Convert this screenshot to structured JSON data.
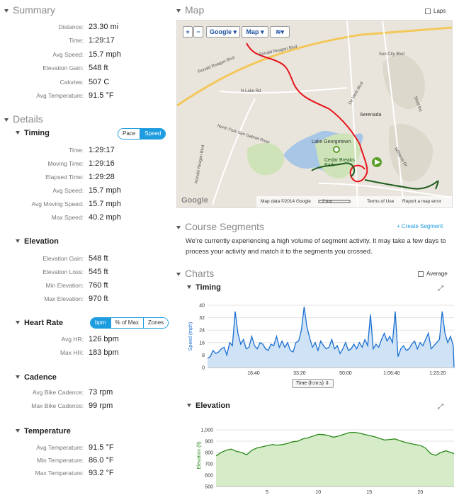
{
  "summary": {
    "title": "Summary",
    "rows": [
      {
        "label": "Distance:",
        "value": "23.30 mi"
      },
      {
        "label": "Time:",
        "value": "1:29:17"
      },
      {
        "label": "Avg Speed:",
        "value": "15.7 mph"
      },
      {
        "label": "Elevation Gain:",
        "value": "548 ft"
      },
      {
        "label": "Calories:",
        "value": "507 C"
      },
      {
        "label": "Avg Temperature:",
        "value": "91.5 °F"
      }
    ]
  },
  "details": {
    "title": "Details",
    "timing": {
      "title": "Timing",
      "toggle": [
        "Pace",
        "Speed"
      ],
      "rows": [
        {
          "label": "Time:",
          "value": "1:29:17"
        },
        {
          "label": "Moving Time:",
          "value": "1:29:16"
        },
        {
          "label": "Elapsed Time:",
          "value": "1:29:28"
        },
        {
          "label": "Avg Speed:",
          "value": "15.7 mph"
        },
        {
          "label": "Avg Moving Speed:",
          "value": "15.7 mph"
        },
        {
          "label": "Max Speed:",
          "value": "40.2 mph"
        }
      ]
    },
    "elevation": {
      "title": "Elevation",
      "rows": [
        {
          "label": "Elevation Gain:",
          "value": "548 ft"
        },
        {
          "label": "Elevation Loss:",
          "value": "545 ft"
        },
        {
          "label": "Min Elevation:",
          "value": "760 ft"
        },
        {
          "label": "Max Elevation:",
          "value": "970 ft"
        }
      ]
    },
    "heart_rate": {
      "title": "Heart Rate",
      "toggle": [
        "bpm",
        "% of Max",
        "Zones"
      ],
      "rows": [
        {
          "label": "Avg HR:",
          "value": "126 bpm"
        },
        {
          "label": "Max HR:",
          "value": "183 bpm"
        }
      ]
    },
    "cadence": {
      "title": "Cadence",
      "rows": [
        {
          "label": "Avg Bike Cadence:",
          "value": "73 rpm"
        },
        {
          "label": "Max Bike Cadence:",
          "value": "99 rpm"
        }
      ]
    },
    "temperature": {
      "title": "Temperature",
      "rows": [
        {
          "label": "Avg Temperature:",
          "value": "91.5 °F"
        },
        {
          "label": "Min Temperature:",
          "value": "86.0 °F"
        },
        {
          "label": "Max Temperature:",
          "value": "93.2 °F"
        }
      ]
    }
  },
  "map": {
    "title": "Map",
    "laps_label": "Laps",
    "buttons": {
      "zoom_in": "+",
      "zoom_out": "−",
      "google": "Google",
      "map": "Map"
    },
    "labels": {
      "road1": "Ronald Reagan Blvd",
      "road2": "Ronald Reagan Blvd",
      "road3": "N Lake Rd",
      "road4": "North Fork San Gabriel River",
      "road5": "De Vanti Blvd",
      "place1": "Serenada",
      "place2": "Lake Georgetown",
      "place3": "Cedar Breaks Park",
      "road6": "Shell Rd",
      "road7": "Sun City Blvd",
      "road8": "Williams Dr",
      "road9": "Ronald Reagan Blvd"
    },
    "footer": {
      "data": "Map data ©2014 Google",
      "scale": "2 km",
      "terms": "Terms of Use",
      "report": "Report a map error",
      "logo": "Google"
    }
  },
  "course_segments": {
    "title": "Course Segments",
    "create_label": "Create Segment",
    "message": "We're currently experiencing a high volume of segment activity. It may take a few days to process your activity and match it to the segments you crossed."
  },
  "charts": {
    "title": "Charts",
    "average_label": "Average",
    "x_selector": "Time (h:m:s)"
  },
  "colors": {
    "accent": "#1d9ce0",
    "route": "#e8141c",
    "speed_line": "#1a6fd0",
    "speed_fill": "#cfe2f6",
    "elev_line": "#2a8a1a",
    "elev_fill": "#d6ecc8"
  },
  "chart_data": [
    {
      "type": "area",
      "title": "Timing",
      "ylabel": "Speed (mph)",
      "xlabel": "Time (h:m:s)",
      "ylim": [
        0,
        40
      ],
      "yticks": [
        0,
        8,
        16,
        24,
        32,
        40
      ],
      "xlim_seconds": [
        0,
        5357
      ],
      "xticks": [
        {
          "t": 1000,
          "label": "16:40"
        },
        {
          "t": 2000,
          "label": "33:20"
        },
        {
          "t": 3000,
          "label": "50:00"
        },
        {
          "t": 4000,
          "label": "1:06:40"
        },
        {
          "t": 5000,
          "label": "1:23:20"
        }
      ],
      "x": [
        0,
        60,
        120,
        180,
        240,
        300,
        360,
        420,
        480,
        540,
        600,
        660,
        720,
        780,
        840,
        900,
        960,
        1020,
        1080,
        1140,
        1200,
        1260,
        1320,
        1380,
        1440,
        1500,
        1560,
        1620,
        1680,
        1740,
        1800,
        1860,
        1920,
        1980,
        2040,
        2100,
        2160,
        2220,
        2280,
        2340,
        2400,
        2460,
        2520,
        2580,
        2640,
        2700,
        2760,
        2820,
        2880,
        2940,
        3000,
        3060,
        3120,
        3180,
        3240,
        3300,
        3360,
        3420,
        3480,
        3540,
        3600,
        3660,
        3720,
        3780,
        3840,
        3900,
        3960,
        4020,
        4080,
        4140,
        4200,
        4260,
        4320,
        4380,
        4440,
        4500,
        4560,
        4620,
        4680,
        4740,
        4800,
        4860,
        4920,
        4980,
        5040,
        5100,
        5160,
        5220,
        5280,
        5340,
        5357
      ],
      "series": [
        {
          "values": [
            6,
            7,
            11,
            9,
            10,
            12,
            13,
            8,
            16,
            14,
            36,
            22,
            15,
            18,
            12,
            13,
            20,
            14,
            12,
            16,
            15,
            12,
            11,
            15,
            14,
            20,
            13,
            17,
            13,
            16,
            11,
            10,
            16,
            17,
            24,
            39,
            26,
            19,
            13,
            16,
            11,
            17,
            14,
            12,
            13,
            18,
            12,
            14,
            9,
            12,
            16,
            11,
            12,
            15,
            12,
            16,
            13,
            18,
            14,
            34,
            12,
            15,
            13,
            18,
            22,
            17,
            20,
            16,
            36,
            7,
            12,
            14,
            11,
            12,
            15,
            17,
            12,
            16,
            14,
            18,
            22,
            12,
            14,
            16,
            18,
            36,
            22,
            16,
            20,
            14,
            0
          ]
        }
      ]
    },
    {
      "type": "area",
      "title": "Elevation",
      "ylabel": "Elevation (ft)",
      "ylim": [
        500,
        1050
      ],
      "yticks": [
        500,
        600,
        700,
        800,
        900,
        1000
      ],
      "ytick_labels": [
        "500",
        "600",
        "700",
        "800",
        "900",
        "1,000"
      ],
      "xlim": [
        0,
        23.3
      ],
      "xticks": [
        5,
        10,
        15,
        20
      ],
      "x": [
        0,
        0.5,
        1,
        1.5,
        2,
        2.5,
        3,
        3.5,
        4,
        4.5,
        5,
        5.5,
        6,
        6.5,
        7,
        7.5,
        8,
        8.5,
        9,
        9.5,
        10,
        10.5,
        11,
        11.5,
        12,
        12.5,
        13,
        13.5,
        14,
        14.5,
        15,
        15.5,
        16,
        16.5,
        17,
        17.5,
        18,
        18.5,
        19,
        19.5,
        20,
        20.5,
        21,
        21.5,
        22,
        22.5,
        23,
        23.3
      ],
      "series": [
        {
          "values": [
            770,
            800,
            820,
            830,
            810,
            800,
            780,
            820,
            840,
            850,
            860,
            870,
            865,
            870,
            880,
            895,
            900,
            920,
            930,
            945,
            960,
            958,
            950,
            935,
            945,
            960,
            975,
            978,
            972,
            960,
            950,
            940,
            925,
            910,
            915,
            920,
            905,
            890,
            880,
            870,
            862,
            840,
            790,
            775,
            800,
            815,
            800,
            790
          ]
        }
      ]
    }
  ]
}
